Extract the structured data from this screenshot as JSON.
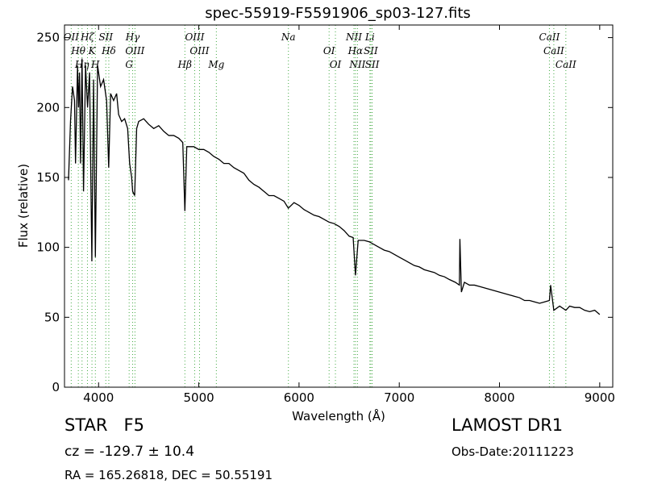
{
  "chart_data": {
    "type": "line",
    "title": "spec-55919-F5591906_sp03-127.fits",
    "x_label": "Wavelength (Å)",
    "y_label": "Flux (relative)",
    "xlim": [
      3660,
      9130
    ],
    "ylim": [
      0,
      259
    ],
    "xticks": [
      4000,
      5000,
      6000,
      7000,
      8000,
      9000
    ],
    "yticks": [
      0,
      50,
      100,
      150,
      200,
      250
    ],
    "series": [
      {
        "name": "flux",
        "color": "#000000",
        "x": [
          3700,
          3720,
          3740,
          3760,
          3770,
          3790,
          3800,
          3810,
          3820,
          3835,
          3850,
          3870,
          3890,
          3910,
          3933,
          3950,
          3968,
          3990,
          4020,
          4050,
          4080,
          4101,
          4120,
          4150,
          4180,
          4200,
          4230,
          4260,
          4290,
          4310,
          4330,
          4340,
          4360,
          4380,
          4400,
          4450,
          4500,
          4550,
          4600,
          4650,
          4700,
          4750,
          4800,
          4840,
          4861,
          4880,
          4950,
          5000,
          5050,
          5100,
          5150,
          5200,
          5250,
          5300,
          5350,
          5400,
          5450,
          5500,
          5550,
          5600,
          5650,
          5700,
          5750,
          5800,
          5850,
          5893,
          5950,
          6000,
          6050,
          6100,
          6150,
          6200,
          6250,
          6300,
          6350,
          6400,
          6450,
          6500,
          6540,
          6563,
          6590,
          6650,
          6700,
          6750,
          6800,
          6850,
          6900,
          6950,
          7000,
          7050,
          7100,
          7150,
          7200,
          7250,
          7300,
          7350,
          7400,
          7450,
          7500,
          7560,
          7600,
          7605,
          7620,
          7650,
          7700,
          7750,
          7800,
          7850,
          7900,
          7950,
          8000,
          8050,
          8100,
          8150,
          8200,
          8250,
          8300,
          8350,
          8400,
          8450,
          8498,
          8510,
          8542,
          8600,
          8662,
          8700,
          8750,
          8800,
          8850,
          8900,
          8950,
          9000
        ],
        "values": [
          148,
          190,
          215,
          205,
          160,
          230,
          200,
          225,
          160,
          235,
          140,
          230,
          200,
          225,
          90,
          220,
          93,
          230,
          215,
          220,
          205,
          157,
          210,
          205,
          210,
          195,
          190,
          192,
          185,
          160,
          150,
          140,
          137,
          185,
          190,
          192,
          188,
          185,
          187,
          183,
          180,
          180,
          178,
          175,
          126,
          172,
          172,
          170,
          170,
          168,
          165,
          163,
          160,
          160,
          157,
          155,
          153,
          148,
          145,
          143,
          140,
          137,
          137,
          135,
          133,
          128,
          132,
          130,
          127,
          125,
          123,
          122,
          120,
          118,
          117,
          115,
          112,
          108,
          107,
          80,
          105,
          105,
          104,
          102,
          100,
          98,
          97,
          95,
          93,
          91,
          89,
          87,
          86,
          84,
          83,
          82,
          80,
          79,
          77,
          75,
          73,
          106,
          68,
          75,
          73,
          73,
          72,
          71,
          70,
          69,
          68,
          67,
          66,
          65,
          64,
          62,
          62,
          61,
          60,
          61,
          62,
          73,
          55,
          58,
          55,
          58,
          57,
          57,
          55,
          54,
          55,
          52
        ]
      }
    ],
    "lines": {
      "color": "#44aa44",
      "labels": [
        "OII",
        "Hθ",
        "Hη",
        "Hζ",
        "K",
        "H",
        "SII",
        "Hδ",
        "G",
        "Hγ",
        "OIII",
        "Hβ",
        "OIII",
        "OIII",
        "Mg",
        "Na",
        "OI",
        "OI",
        "NII",
        "Hα",
        "NII",
        "Li",
        "SII",
        "SII",
        "CaII",
        "CaII",
        "CaII"
      ],
      "x": [
        3727,
        3798,
        3835,
        3889,
        3934,
        3968,
        4072,
        4102,
        4305,
        4340,
        4363,
        4861,
        4959,
        5007,
        5175,
        5894,
        6300,
        6363,
        6548,
        6563,
        6583,
        6707,
        6716,
        6730,
        8498,
        8542,
        8662
      ]
    }
  },
  "info": {
    "class": "STAR   F5",
    "cz": "cz = -129.7 ± 10.4",
    "coords": "RA = 165.26818, DEC = 50.55191",
    "survey": "LAMOST DR1",
    "date": "Obs-Date:20111223"
  }
}
